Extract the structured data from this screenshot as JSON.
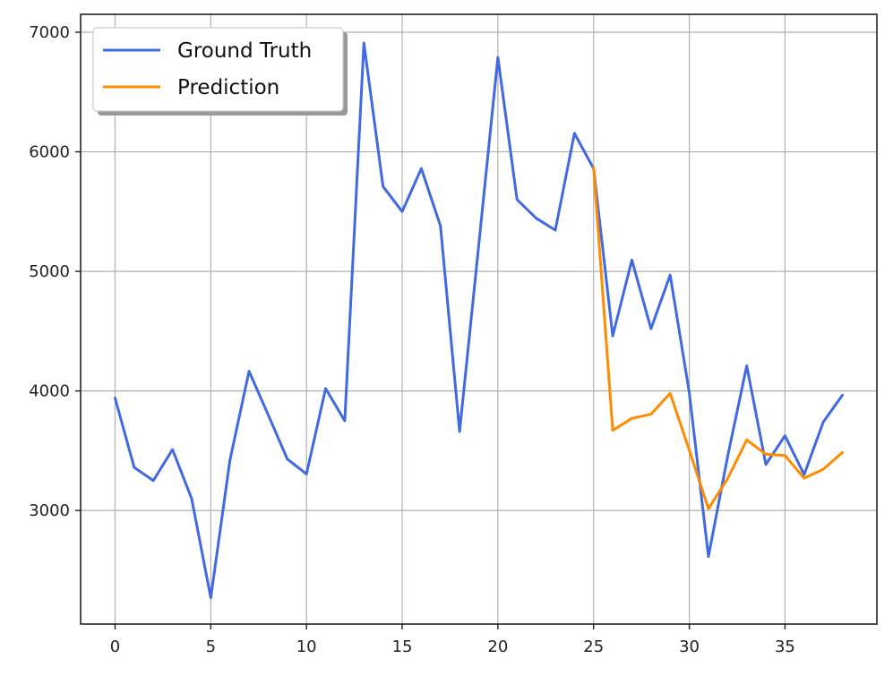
{
  "chart_data": {
    "type": "line",
    "title": "",
    "xlabel": "",
    "ylabel": "",
    "xlim": [
      -1.8,
      39.8
    ],
    "ylim": [
      2050,
      7150
    ],
    "x_ticks": [
      0,
      5,
      10,
      15,
      20,
      25,
      30,
      35
    ],
    "x_tick_labels": [
      "0",
      "5",
      "10",
      "15",
      "20",
      "25",
      "30",
      "35"
    ],
    "y_ticks": [
      3000,
      4000,
      5000,
      6000,
      7000
    ],
    "y_tick_labels": [
      "3000",
      "4000",
      "5000",
      "6000",
      "7000"
    ],
    "grid": true,
    "legend_position": "upper-left",
    "series": [
      {
        "name": "Ground Truth",
        "color": "#4169e1",
        "x": [
          0,
          1,
          2,
          3,
          4,
          5,
          6,
          7,
          8,
          9,
          10,
          11,
          12,
          13,
          14,
          15,
          16,
          17,
          18,
          19,
          20,
          21,
          22,
          23,
          24,
          25,
          26,
          27,
          28,
          29,
          30,
          31,
          32,
          33,
          34,
          35,
          36,
          37,
          38
        ],
        "values": [
          3940,
          3360,
          3250,
          3510,
          3100,
          2270,
          3420,
          4165,
          3800,
          3430,
          3305,
          4020,
          3750,
          6910,
          5710,
          5500,
          5860,
          5380,
          3660,
          5220,
          6790,
          5600,
          5445,
          5345,
          6155,
          5860,
          4460,
          5095,
          4520,
          4970,
          3985,
          2615,
          3450,
          4210,
          3385,
          3625,
          3300,
          3740,
          3965
        ]
      },
      {
        "name": "Prediction",
        "color": "#ff8c00",
        "x": [
          25,
          26,
          27,
          28,
          29,
          30,
          31,
          32,
          33,
          34,
          35,
          36,
          37,
          38
        ],
        "values": [
          5870,
          3670,
          3770,
          3805,
          3980,
          3505,
          3015,
          3265,
          3590,
          3470,
          3460,
          3270,
          3345,
          3485
        ]
      }
    ]
  }
}
